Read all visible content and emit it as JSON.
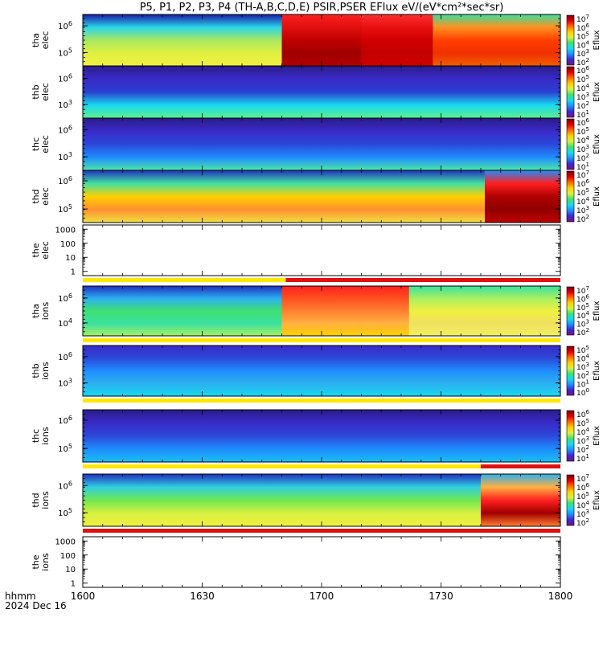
{
  "title": "P5, P1, P2, P3, P4 (TH-A,B,C,D,E) PSIR,PSER EFlux eV/(eV*cm²*sec*sr)",
  "footer": {
    "time_label": "hhmm",
    "date_label": "2024 Dec 16"
  },
  "x_axis": {
    "ticks": [
      {
        "value": 0,
        "label": "1600"
      },
      {
        "value": 30,
        "label": "1630"
      },
      {
        "value": 60,
        "label": "1700"
      },
      {
        "value": 90,
        "label": "1730"
      },
      {
        "value": 120,
        "label": "1800"
      }
    ],
    "minor_step_minutes": 5,
    "range_minutes": [
      0,
      120
    ]
  },
  "colorbar_gradient": [
    "#7a0d8a",
    "#3a2ac8",
    "#1f8cff",
    "#19d8f0",
    "#3fe070",
    "#d8f040",
    "#ffd000",
    "#ff6a00",
    "#e00000",
    "#7a0000"
  ],
  "chart_data": [
    {
      "id": "tha-elec",
      "type": "heatmap",
      "ylabel_line1": "tha",
      "ylabel_line2": "elec",
      "y_ticks": [
        {
          "exp": "6"
        },
        {
          "exp": "5"
        }
      ],
      "colorbar": {
        "label": "Eflux",
        "ticks": [
          "7",
          "6",
          "5",
          "4",
          "3",
          "2"
        ]
      },
      "strip_below": null,
      "regions": [
        {
          "t0": 0,
          "t1": 50,
          "colors": [
            "#1a1aa8",
            "#2bd6e8",
            "#a8e860",
            "#e0f040",
            "#f0f040"
          ]
        },
        {
          "t0": 50,
          "t1": 70,
          "colors": [
            "#ff2020",
            "#e01010",
            "#c00000",
            "#a00000",
            "#b00000"
          ]
        },
        {
          "t0": 70,
          "t1": 88,
          "colors": [
            "#ff3030",
            "#e81010",
            "#d00000",
            "#c40000",
            "#d00000"
          ]
        },
        {
          "t0": 88,
          "t1": 120,
          "colors": [
            "#3ae0a0",
            "#ff9020",
            "#ff4000",
            "#f03000",
            "#f06000"
          ]
        }
      ]
    },
    {
      "id": "thb-elec",
      "type": "heatmap",
      "ylabel_line1": "thb",
      "ylabel_line2": "elec",
      "y_ticks": [
        {
          "exp": "6"
        },
        {
          "exp": "3"
        }
      ],
      "colorbar": {
        "label": "Eflux",
        "ticks": [
          "6",
          "5",
          "4",
          "3",
          "2",
          "1"
        ]
      },
      "strip_below": null,
      "regions": [
        {
          "t0": 0,
          "t1": 120,
          "colors": [
            "#2a1c8a",
            "#3a2ac8",
            "#2a40d0",
            "#19d8f0",
            "#5ef08a"
          ]
        }
      ]
    },
    {
      "id": "thc-elec",
      "type": "heatmap",
      "ylabel_line1": "thc",
      "ylabel_line2": "elec",
      "y_ticks": [
        {
          "exp": "6"
        },
        {
          "exp": "3"
        }
      ],
      "colorbar": {
        "label": "Eflux",
        "ticks": [
          "6",
          "5",
          "4",
          "3",
          "2",
          "1"
        ]
      },
      "strip_below": null,
      "regions": [
        {
          "t0": 0,
          "t1": 120,
          "colors": [
            "#2a1c8a",
            "#3a2ac8",
            "#2c48d8",
            "#1f8cff",
            "#4ce8a8"
          ]
        }
      ]
    },
    {
      "id": "thd-elec",
      "type": "heatmap",
      "ylabel_line1": "thd",
      "ylabel_line2": "elec",
      "y_ticks": [
        {
          "exp": "6"
        },
        {
          "exp": "5"
        }
      ],
      "colorbar": {
        "label": "Eflux",
        "ticks": [
          "7",
          "6",
          "5",
          "4",
          "3",
          "2"
        ]
      },
      "strip_below": null,
      "regions": [
        {
          "t0": 0,
          "t1": 101,
          "colors": [
            "#2030c0",
            "#40e0a0",
            "#ffd000",
            "#ff9030",
            "#f0e040"
          ]
        },
        {
          "t0": 101,
          "t1": 120,
          "colors": [
            "#1f8cff",
            "#ff2020",
            "#b00000",
            "#900000",
            "#c00000"
          ]
        }
      ]
    },
    {
      "id": "the-elec",
      "type": "line",
      "ylabel_line1": "the",
      "ylabel_line2": "elec",
      "y_ticks": [
        {
          "label": "1000"
        },
        {
          "label": "100"
        },
        {
          "label": "10"
        },
        {
          "label": "1"
        }
      ],
      "ylim": [
        0.5,
        2000
      ],
      "strip_below": [
        {
          "t0": 0,
          "t1": 51,
          "color": "#ffe800"
        },
        {
          "t0": 51,
          "t1": 120,
          "color": "#e01010"
        }
      ]
    },
    {
      "id": "tha-ions",
      "type": "heatmap",
      "ylabel_line1": "tha",
      "ylabel_line2": "ions",
      "y_ticks": [
        {
          "exp": "6"
        },
        {
          "exp": "4"
        }
      ],
      "colorbar": {
        "label": "Eflux",
        "ticks": [
          "7",
          "6",
          "5",
          "4",
          "3",
          "2"
        ]
      },
      "strip_below": [
        {
          "t0": 0,
          "t1": 120,
          "color": "#ffe800"
        }
      ],
      "regions": [
        {
          "t0": 0,
          "t1": 50,
          "colors": [
            "#2030c0",
            "#2bb0f0",
            "#40e070",
            "#3ae0a0",
            "#a8f060"
          ]
        },
        {
          "t0": 50,
          "t1": 82,
          "colors": [
            "#ff2020",
            "#ff5020",
            "#ff8030",
            "#ffb040",
            "#ffd000"
          ]
        },
        {
          "t0": 82,
          "t1": 120,
          "colors": [
            "#3ae0a0",
            "#a8f060",
            "#f0f040",
            "#f0e060",
            "#f0f060"
          ]
        }
      ]
    },
    {
      "id": "thb-ions",
      "type": "heatmap",
      "ylabel_line1": "thb",
      "ylabel_line2": "ions",
      "y_ticks": [
        {
          "exp": "6"
        },
        {
          "exp": "3"
        }
      ],
      "colorbar": {
        "label": "Eflux",
        "ticks": [
          "5",
          "4",
          "3",
          "2",
          "1",
          "0"
        ]
      },
      "strip_below": [
        {
          "t0": 0,
          "t1": 120,
          "color": "#ffe800"
        }
      ],
      "regions": [
        {
          "t0": 0,
          "t1": 120,
          "colors": [
            "#3a2ac8",
            "#2c48d8",
            "#1f8cff",
            "#2bb0f0",
            "#19d8f0"
          ]
        }
      ]
    },
    {
      "id": "thc-ions",
      "type": "heatmap",
      "ylabel_line1": "thc",
      "ylabel_line2": "ions",
      "y_ticks": [
        {
          "exp": "6"
        },
        {
          "exp": "5"
        }
      ],
      "colorbar": {
        "label": "Eflux",
        "ticks": [
          "6",
          "5",
          "4",
          "3",
          "2",
          "1"
        ]
      },
      "strip_below": [
        {
          "t0": 0,
          "t1": 100,
          "color": "#ffe800"
        },
        {
          "t0": 100,
          "t1": 120,
          "color": "#e01010"
        }
      ],
      "regions": [
        {
          "t0": 0,
          "t1": 120,
          "colors": [
            "#2a1c8a",
            "#3a2ac8",
            "#2c48d8",
            "#1f8cff",
            "#19c0f0"
          ]
        }
      ]
    },
    {
      "id": "thd-ions",
      "type": "heatmap",
      "ylabel_line1": "thd",
      "ylabel_line2": "ions",
      "y_ticks": [
        {
          "exp": "6"
        },
        {
          "exp": "5"
        }
      ],
      "colorbar": {
        "label": "Eflux",
        "ticks": [
          "7",
          "6",
          "5",
          "4",
          "3",
          "2"
        ]
      },
      "strip_below": [
        {
          "t0": 0,
          "t1": 120,
          "color": "#e01010"
        }
      ],
      "regions": [
        {
          "t0": 0,
          "t1": 100,
          "colors": [
            "#2030c0",
            "#30d0e0",
            "#70e850",
            "#d8f040",
            "#f0f040"
          ]
        },
        {
          "t0": 100,
          "t1": 120,
          "colors": [
            "#2bb0f0",
            "#ffb040",
            "#ff2020",
            "#a00000",
            "#ff8030"
          ]
        }
      ]
    },
    {
      "id": "the-ions",
      "type": "line",
      "ylabel_line1": "the",
      "ylabel_line2": "ions",
      "y_ticks": [
        {
          "label": "1000"
        },
        {
          "label": "100"
        },
        {
          "label": "10"
        },
        {
          "label": "1"
        }
      ],
      "ylim": [
        0.5,
        2000
      ],
      "strip_below": null
    }
  ]
}
